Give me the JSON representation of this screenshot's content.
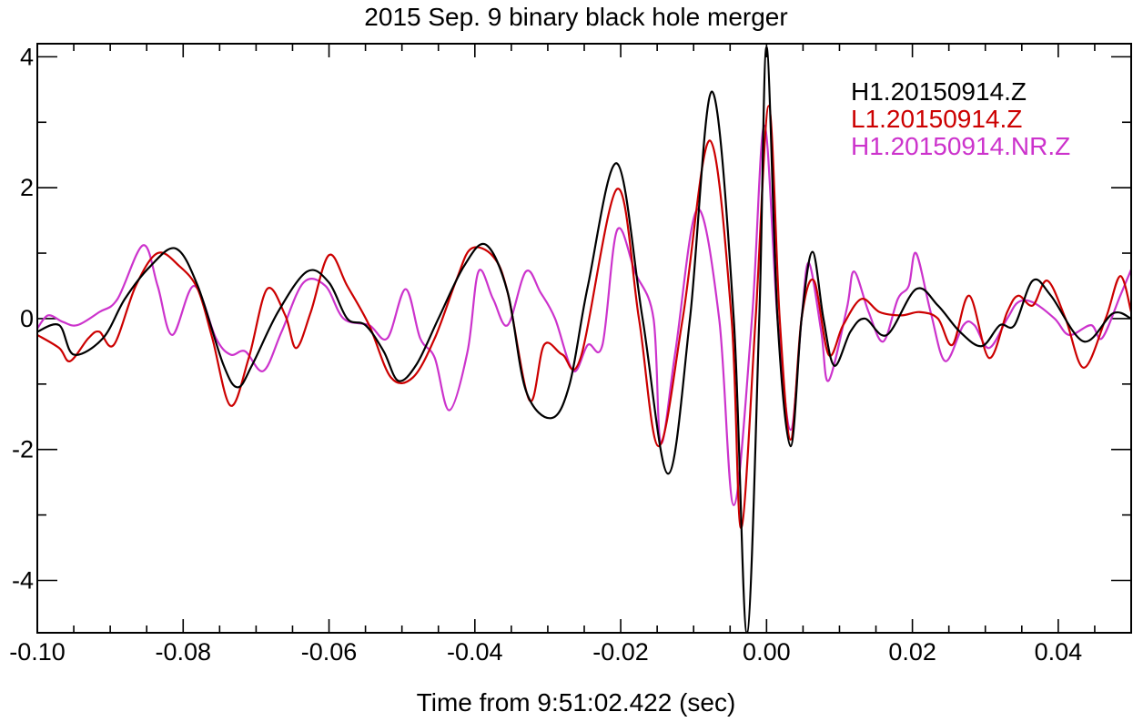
{
  "chart_data": {
    "type": "line",
    "title": "2015 Sep. 9 binary black hole merger",
    "xlabel": "Time from 9:51:02.422 (sec)",
    "ylabel": "",
    "xlim": [
      -0.1,
      0.05
    ],
    "ylim": [
      -4.8,
      4.2
    ],
    "x_ticks": [
      -0.1,
      -0.08,
      -0.06,
      -0.04,
      -0.02,
      0.0,
      0.02,
      0.04
    ],
    "x_tick_labels": [
      "-0.10",
      "-0.08",
      "-0.06",
      "-0.04",
      "-0.02",
      "0.00",
      "0.02",
      "0.04"
    ],
    "y_ticks": [
      -4,
      -2,
      0,
      2,
      4
    ],
    "y_tick_labels": [
      "-4",
      "-2",
      "0",
      "2",
      "4"
    ],
    "x_minor_step": 0.005,
    "y_minor_step": 1,
    "grid": false,
    "legend_position": "top-right",
    "series": [
      {
        "name": "H1.20150914.Z",
        "color": "#000000",
        "points": [
          [
            -0.1,
            -0.2
          ],
          [
            -0.097,
            -0.1
          ],
          [
            -0.095,
            -0.55
          ],
          [
            -0.091,
            -0.3
          ],
          [
            -0.088,
            0.3
          ],
          [
            -0.0845,
            0.8
          ],
          [
            -0.081,
            1.07
          ],
          [
            -0.078,
            0.5
          ],
          [
            -0.0745,
            -0.7
          ],
          [
            -0.0725,
            -1.05
          ],
          [
            -0.0705,
            -0.7
          ],
          [
            -0.067,
            0.1
          ],
          [
            -0.063,
            0.72
          ],
          [
            -0.06,
            0.55
          ],
          [
            -0.0575,
            0.0
          ],
          [
            -0.055,
            -0.1
          ],
          [
            -0.0525,
            -0.5
          ],
          [
            -0.0505,
            -0.95
          ],
          [
            -0.048,
            -0.7
          ],
          [
            -0.045,
            0.0
          ],
          [
            -0.0415,
            0.8
          ],
          [
            -0.0385,
            1.13
          ],
          [
            -0.0355,
            0.4
          ],
          [
            -0.033,
            -1.1
          ],
          [
            -0.0295,
            -1.52
          ],
          [
            -0.027,
            -1.0
          ],
          [
            -0.0245,
            0.5
          ],
          [
            -0.0205,
            2.37
          ],
          [
            -0.017,
            0.0
          ],
          [
            -0.0135,
            -2.37
          ],
          [
            -0.0105,
            0.0
          ],
          [
            -0.0075,
            3.47
          ],
          [
            -0.0045,
            0.0
          ],
          [
            -0.0027,
            -4.8
          ],
          [
            -0.001,
            0.0
          ],
          [
            0.0,
            4.15
          ],
          [
            0.0015,
            0.0
          ],
          [
            0.0033,
            -1.95
          ],
          [
            0.0048,
            0.0
          ],
          [
            0.0063,
            1.02
          ],
          [
            0.0078,
            0.0
          ],
          [
            0.0093,
            -0.72
          ],
          [
            0.0115,
            -0.2
          ],
          [
            0.0135,
            0.0
          ],
          [
            0.0165,
            -0.25
          ],
          [
            0.0205,
            0.45
          ],
          [
            0.0235,
            0.2
          ],
          [
            0.0265,
            -0.2
          ],
          [
            0.0295,
            -0.42
          ],
          [
            0.032,
            -0.1
          ],
          [
            0.034,
            -0.1
          ],
          [
            0.0365,
            0.58
          ],
          [
            0.039,
            0.35
          ],
          [
            0.0435,
            -0.35
          ],
          [
            0.0475,
            0.08
          ],
          [
            0.05,
            0.0
          ]
        ]
      },
      {
        "name": "L1.20150914.Z",
        "color": "#cc0000",
        "points": [
          [
            -0.1,
            -0.25
          ],
          [
            -0.097,
            -0.45
          ],
          [
            -0.0955,
            -0.65
          ],
          [
            -0.093,
            -0.3
          ],
          [
            -0.0915,
            -0.2
          ],
          [
            -0.0895,
            -0.4
          ],
          [
            -0.0865,
            0.5
          ],
          [
            -0.0835,
            1.0
          ],
          [
            -0.0805,
            0.8
          ],
          [
            -0.078,
            0.45
          ],
          [
            -0.076,
            -0.3
          ],
          [
            -0.0735,
            -1.33
          ],
          [
            -0.071,
            -0.6
          ],
          [
            -0.0685,
            0.45
          ],
          [
            -0.066,
            0.05
          ],
          [
            -0.0645,
            -0.45
          ],
          [
            -0.0625,
            0.1
          ],
          [
            -0.06,
            0.97
          ],
          [
            -0.0575,
            0.5
          ],
          [
            -0.0545,
            -0.1
          ],
          [
            -0.0515,
            -0.9
          ],
          [
            -0.0485,
            -0.9
          ],
          [
            -0.0455,
            -0.3
          ],
          [
            -0.0425,
            0.6
          ],
          [
            -0.0405,
            1.07
          ],
          [
            -0.0375,
            0.95
          ],
          [
            -0.0355,
            0.4
          ],
          [
            -0.0325,
            -1.25
          ],
          [
            -0.0305,
            -0.4
          ],
          [
            -0.028,
            -0.55
          ],
          [
            -0.0255,
            -0.6
          ],
          [
            -0.0205,
            1.98
          ],
          [
            -0.0175,
            0.0
          ],
          [
            -0.0148,
            -1.95
          ],
          [
            -0.0115,
            0.0
          ],
          [
            -0.0078,
            2.72
          ],
          [
            -0.0048,
            0.0
          ],
          [
            -0.0035,
            -3.2
          ],
          [
            -0.0015,
            0.0
          ],
          [
            0.0003,
            3.25
          ],
          [
            0.0018,
            0.0
          ],
          [
            0.0033,
            -1.85
          ],
          [
            0.0048,
            0.0
          ],
          [
            0.0065,
            0.58
          ],
          [
            0.0085,
            -0.55
          ],
          [
            0.0105,
            -0.1
          ],
          [
            0.013,
            0.3
          ],
          [
            0.0155,
            0.1
          ],
          [
            0.0185,
            0.05
          ],
          [
            0.021,
            0.1
          ],
          [
            0.0235,
            0.0
          ],
          [
            0.0255,
            -0.4
          ],
          [
            0.0278,
            0.35
          ],
          [
            0.0305,
            -0.6
          ],
          [
            0.033,
            0.1
          ],
          [
            0.0345,
            0.35
          ],
          [
            0.0365,
            0.2
          ],
          [
            0.0385,
            0.58
          ],
          [
            0.041,
            0.0
          ],
          [
            0.0435,
            -0.75
          ],
          [
            0.0465,
            0.0
          ],
          [
            0.0485,
            0.65
          ],
          [
            0.05,
            0.1
          ]
        ]
      },
      {
        "name": "H1.20150914.NR.Z",
        "color": "#cc33cc",
        "points": [
          [
            -0.1,
            -0.15
          ],
          [
            -0.0985,
            0.05
          ],
          [
            -0.0965,
            -0.05
          ],
          [
            -0.0945,
            -0.1
          ],
          [
            -0.0915,
            0.1
          ],
          [
            -0.089,
            0.3
          ],
          [
            -0.0855,
            1.12
          ],
          [
            -0.0835,
            0.5
          ],
          [
            -0.0815,
            -0.25
          ],
          [
            -0.0785,
            0.5
          ],
          [
            -0.0755,
            -0.3
          ],
          [
            -0.0735,
            -0.55
          ],
          [
            -0.0715,
            -0.5
          ],
          [
            -0.069,
            -0.8
          ],
          [
            -0.0665,
            -0.2
          ],
          [
            -0.0635,
            0.55
          ],
          [
            -0.0605,
            0.5
          ],
          [
            -0.058,
            0.0
          ],
          [
            -0.0545,
            -0.1
          ],
          [
            -0.052,
            -0.3
          ],
          [
            -0.0495,
            0.45
          ],
          [
            -0.0475,
            -0.3
          ],
          [
            -0.0455,
            -0.6
          ],
          [
            -0.0435,
            -1.4
          ],
          [
            -0.041,
            -0.5
          ],
          [
            -0.0395,
            0.72
          ],
          [
            -0.0375,
            0.3
          ],
          [
            -0.0355,
            -0.1
          ],
          [
            -0.033,
            0.72
          ],
          [
            -0.031,
            0.4
          ],
          [
            -0.029,
            0.0
          ],
          [
            -0.0265,
            -0.8
          ],
          [
            -0.0245,
            -0.4
          ],
          [
            -0.0225,
            -0.4
          ],
          [
            -0.0205,
            1.35
          ],
          [
            -0.018,
            0.7
          ],
          [
            -0.0155,
            0.0
          ],
          [
            -0.0145,
            -1.9
          ],
          [
            -0.0125,
            -0.5
          ],
          [
            -0.0095,
            1.67
          ],
          [
            -0.0065,
            0.0
          ],
          [
            -0.0045,
            -2.85
          ],
          [
            -0.002,
            0.0
          ],
          [
            -0.0003,
            2.95
          ],
          [
            0.0015,
            0.0
          ],
          [
            0.0033,
            -1.7
          ],
          [
            0.0048,
            0.0
          ],
          [
            0.0058,
            0.85
          ],
          [
            0.0075,
            -0.2
          ],
          [
            0.0085,
            -0.95
          ],
          [
            0.011,
            0.15
          ],
          [
            0.012,
            0.72
          ],
          [
            0.014,
            0.1
          ],
          [
            0.016,
            -0.35
          ],
          [
            0.018,
            0.3
          ],
          [
            0.0195,
            0.5
          ],
          [
            0.0205,
            1.0
          ],
          [
            0.0225,
            0.1
          ],
          [
            0.0245,
            -0.65
          ],
          [
            0.027,
            -0.1
          ],
          [
            0.0285,
            -0.1
          ],
          [
            0.0305,
            -0.45
          ],
          [
            0.033,
            0.0
          ],
          [
            0.0345,
            0.25
          ],
          [
            0.0365,
            0.25
          ],
          [
            0.0395,
            0.0
          ],
          [
            0.0415,
            -0.25
          ],
          [
            0.0445,
            -0.1
          ],
          [
            0.046,
            -0.3
          ],
          [
            0.0485,
            0.35
          ],
          [
            0.05,
            0.75
          ]
        ]
      }
    ]
  }
}
